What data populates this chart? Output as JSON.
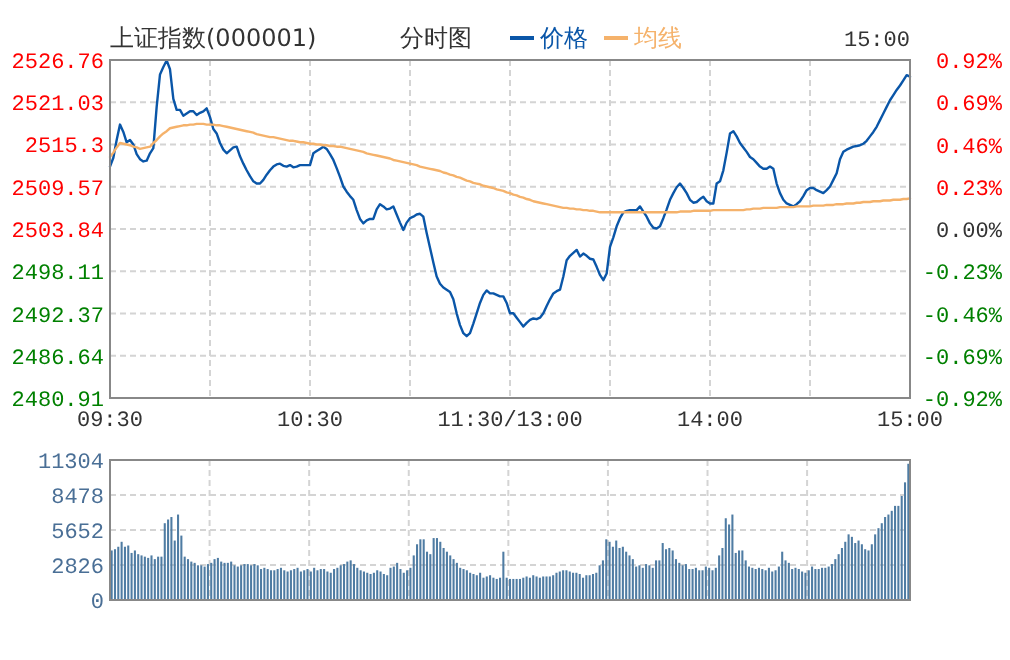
{
  "chart_data": [
    {
      "type": "line",
      "title": "上证指数(000001)",
      "subtitle": "分时图",
      "annotations": [
        "15:00"
      ],
      "legend": "top",
      "grid": true,
      "marker": "none",
      "line_style": "solid",
      "categories": [
        "09:30",
        null,
        null,
        null,
        null,
        null,
        null,
        null,
        null,
        null,
        null,
        null,
        null,
        null,
        null,
        null,
        null,
        null,
        null,
        null,
        null,
        null,
        null,
        null,
        null,
        null,
        null,
        null,
        null,
        null,
        null,
        null,
        null,
        null,
        null,
        null,
        null,
        null,
        null,
        null,
        null,
        null,
        null,
        null,
        null,
        null,
        null,
        null,
        null,
        null,
        null,
        null,
        null,
        null,
        null,
        null,
        null,
        null,
        null,
        null,
        "10:30",
        null,
        null,
        null,
        null,
        null,
        null,
        null,
        null,
        null,
        null,
        null,
        null,
        null,
        null,
        null,
        null,
        null,
        null,
        null,
        null,
        null,
        null,
        null,
        null,
        null,
        null,
        null,
        null,
        null,
        null,
        null,
        null,
        null,
        null,
        null,
        null,
        null,
        null,
        null,
        null,
        null,
        null,
        null,
        null,
        null,
        null,
        null,
        null,
        null,
        null,
        null,
        null,
        null,
        null,
        null,
        null,
        null,
        null,
        null,
        "11:30/13:00",
        null,
        null,
        null,
        null,
        null,
        null,
        null,
        null,
        null,
        null,
        null,
        null,
        null,
        null,
        null,
        null,
        null,
        null,
        null,
        null,
        null,
        null,
        null,
        null,
        null,
        null,
        null,
        null,
        null,
        null,
        null,
        null,
        null,
        null,
        null,
        null,
        null,
        null,
        null,
        null,
        null,
        null,
        null,
        null,
        null,
        null,
        null,
        null,
        null,
        null,
        null,
        null,
        null,
        null,
        null,
        null,
        null,
        null,
        null,
        "14:00",
        null,
        null,
        null,
        null,
        null,
        null,
        null,
        null,
        null,
        null,
        null,
        null,
        null,
        null,
        null,
        null,
        null,
        null,
        null,
        null,
        null,
        null,
        null,
        null,
        null,
        null,
        null,
        null,
        null,
        null,
        null,
        null,
        null,
        null,
        null,
        null,
        null,
        null,
        null,
        null,
        null,
        null,
        null,
        null,
        null,
        null,
        null,
        null,
        null,
        null,
        null,
        null,
        null,
        null,
        null,
        null,
        null,
        null,
        null,
        "15:00"
      ],
      "ylim": [
        2480.91,
        2526.76
      ],
      "yticks": [
        2480.91,
        2486.64,
        2492.37,
        2498.11,
        2503.84,
        2509.57,
        2515.3,
        2521.03,
        2526.76
      ],
      "y2lim": [
        -0.92,
        0.92
      ],
      "y2ticks": [
        {
          "value": -0.92,
          "label": "-0.92%"
        },
        {
          "value": -0.69,
          "label": "-0.69%"
        },
        {
          "value": -0.46,
          "label": "-0.46%"
        },
        {
          "value": -0.23,
          "label": "-0.23%"
        },
        {
          "value": 0,
          "label": "0.00%"
        },
        {
          "value": 0.23,
          "label": "0.23%"
        },
        {
          "value": 0.46,
          "label": "0.46%"
        },
        {
          "value": 0.69,
          "label": "0.69%"
        },
        {
          "value": 0.92,
          "label": "0.92%"
        }
      ],
      "series": [
        {
          "name": "价格",
          "color": "#0a56a8",
          "values": [
            2512.3,
            2513.5,
            2515.9,
            2518.0,
            2517.0,
            2515.6,
            2515.9,
            2515.3,
            2514.0,
            2513.3,
            2513.0,
            2513.1,
            2514.1,
            2514.8,
            2520.4,
            2524.8,
            2525.8,
            2526.7,
            2525.5,
            2521.5,
            2520.0,
            2520.0,
            2519.2,
            2519.5,
            2519.8,
            2519.8,
            2519.3,
            2519.6,
            2519.8,
            2520.2,
            2519.0,
            2517.4,
            2516.8,
            2515.5,
            2514.6,
            2514.1,
            2514.5,
            2514.9,
            2515.0,
            2513.7,
            2512.7,
            2511.8,
            2511.0,
            2510.3,
            2510.0,
            2510.0,
            2510.5,
            2511.2,
            2511.8,
            2512.3,
            2512.6,
            2512.7,
            2512.4,
            2512.3,
            2512.5,
            2512.2,
            2512.3,
            2512.5,
            2512.5,
            2512.5,
            2512.5,
            2514.1,
            2514.4,
            2514.7,
            2515.0,
            2514.7,
            2514.0,
            2513.2,
            2512.1,
            2510.9,
            2509.6,
            2508.9,
            2508.3,
            2507.8,
            2506.4,
            2505.2,
            2504.6,
            2505.0,
            2505.2,
            2505.2,
            2506.5,
            2507.2,
            2506.9,
            2506.5,
            2506.6,
            2506.9,
            2505.8,
            2504.7,
            2503.7,
            2504.7,
            2505.3,
            2505.5,
            2505.8,
            2505.9,
            2505.5,
            2503.3,
            2501.3,
            2499.3,
            2497.4,
            2496.4,
            2495.9,
            2495.6,
            2495.3,
            2494.3,
            2492.4,
            2490.8,
            2489.7,
            2489.3,
            2489.7,
            2491.0,
            2492.4,
            2493.8,
            2494.9,
            2495.5,
            2495.1,
            2495.1,
            2494.9,
            2494.7,
            2494.7,
            2493.8,
            2492.4,
            2492.4,
            2491.8,
            2491.2,
            2490.6,
            2491.1,
            2491.5,
            2491.7,
            2491.6,
            2491.8,
            2492.4,
            2493.4,
            2494.3,
            2495.1,
            2495.4,
            2495.6,
            2497.4,
            2499.6,
            2500.2,
            2500.6,
            2501.0,
            2500.1,
            2500.5,
            2500.2,
            2499.8,
            2499.7,
            2498.7,
            2497.6,
            2496.9,
            2497.8,
            2501.4,
            2502.7,
            2504.2,
            2505.3,
            2506.1,
            2506.3,
            2506.4,
            2506.4,
            2506.4,
            2506.9,
            2506.2,
            2505.5,
            2504.6,
            2504.0,
            2503.9,
            2504.2,
            2505.3,
            2506.5,
            2507.8,
            2508.7,
            2509.5,
            2510.0,
            2509.4,
            2508.7,
            2507.8,
            2507.4,
            2507.5,
            2507.9,
            2508.2,
            2507.6,
            2507.3,
            2507.3,
            2510.0,
            2510.3,
            2511.8,
            2514.2,
            2516.8,
            2517.1,
            2516.4,
            2515.5,
            2514.9,
            2514.3,
            2513.6,
            2513.3,
            2512.8,
            2512.3,
            2512.0,
            2512.0,
            2512.3,
            2512.0,
            2510.0,
            2508.7,
            2507.8,
            2507.3,
            2507.1,
            2506.9,
            2507.2,
            2507.6,
            2508.3,
            2509.1,
            2509.4,
            2509.4,
            2509.1,
            2508.9,
            2508.7,
            2509.1,
            2509.6,
            2510.5,
            2511.4,
            2513.3,
            2514.3,
            2514.6,
            2514.8,
            2515.0,
            2515.1,
            2515.2,
            2515.4,
            2515.8,
            2516.4,
            2517.0,
            2517.7,
            2518.6,
            2519.5,
            2520.4,
            2521.3,
            2522.0,
            2522.7,
            2523.3,
            2524.0,
            2524.7,
            2524.5
          ]
        },
        {
          "name": "均线",
          "color": "#f5b26b",
          "values": [
            2513.6,
            2514.2,
            2514.9,
            2515.5,
            2515.4,
            2515.3,
            2515.2,
            2515.0,
            2514.9,
            2514.7,
            2514.8,
            2514.9,
            2515.0,
            2515.5,
            2515.9,
            2516.4,
            2516.8,
            2517.1,
            2517.5,
            2517.6,
            2517.7,
            2517.8,
            2517.9,
            2517.9,
            2518.0,
            2518.0,
            2518.1,
            2518.1,
            2518.1,
            2518.0,
            2518.0,
            2518.0,
            2517.9,
            2517.9,
            2517.8,
            2517.7,
            2517.6,
            2517.5,
            2517.4,
            2517.3,
            2517.2,
            2517.1,
            2517.0,
            2516.9,
            2516.7,
            2516.6,
            2516.5,
            2516.4,
            2516.3,
            2516.3,
            2516.2,
            2516.1,
            2516.0,
            2515.9,
            2515.8,
            2515.8,
            2515.7,
            2515.6,
            2515.6,
            2515.5,
            2515.4,
            2515.4,
            2515.3,
            2515.3,
            2515.2,
            2515.2,
            2515.1,
            2515.1,
            2515.0,
            2515.0,
            2514.9,
            2514.8,
            2514.7,
            2514.6,
            2514.5,
            2514.4,
            2514.3,
            2514.1,
            2514.0,
            2513.9,
            2513.8,
            2513.7,
            2513.6,
            2513.5,
            2513.4,
            2513.2,
            2513.1,
            2513.0,
            2512.9,
            2512.8,
            2512.7,
            2512.6,
            2512.5,
            2512.3,
            2512.2,
            2512.1,
            2512.0,
            2511.9,
            2511.8,
            2511.7,
            2511.5,
            2511.4,
            2511.2,
            2511.1,
            2510.9,
            2510.8,
            2510.6,
            2510.4,
            2510.3,
            2510.1,
            2510.0,
            2509.9,
            2509.7,
            2509.6,
            2509.5,
            2509.4,
            2509.2,
            2509.1,
            2509.0,
            2508.8,
            2508.7,
            2508.5,
            2508.4,
            2508.2,
            2508.1,
            2507.9,
            2507.8,
            2507.6,
            2507.5,
            2507.4,
            2507.3,
            2507.2,
            2507.1,
            2507.0,
            2506.9,
            2506.8,
            2506.7,
            2506.7,
            2506.6,
            2506.6,
            2506.5,
            2506.5,
            2506.4,
            2506.4,
            2506.3,
            2506.3,
            2506.2,
            2506.1,
            2506.1,
            2506.1,
            2506.1,
            2506.1,
            2506.1,
            2506.1,
            2506.1,
            2506.1,
            2506.1,
            2506.1,
            2506.1,
            2506.1,
            2506.1,
            2506.1,
            2506.1,
            2506.1,
            2506.1,
            2506.1,
            2506.1,
            2506.1,
            2506.1,
            2506.1,
            2506.1,
            2506.2,
            2506.2,
            2506.2,
            2506.2,
            2506.3,
            2506.3,
            2506.3,
            2506.3,
            2506.3,
            2506.3,
            2506.4,
            2506.4,
            2506.4,
            2506.4,
            2506.4,
            2506.4,
            2506.4,
            2506.4,
            2506.4,
            2506.4,
            2506.5,
            2506.5,
            2506.6,
            2506.6,
            2506.6,
            2506.7,
            2506.7,
            2506.7,
            2506.7,
            2506.7,
            2506.8,
            2506.8,
            2506.8,
            2506.8,
            2506.8,
            2506.9,
            2506.9,
            2506.9,
            2506.9,
            2506.9,
            2507.0,
            2507.0,
            2507.0,
            2507.0,
            2507.1,
            2507.1,
            2507.1,
            2507.2,
            2507.2,
            2507.2,
            2507.3,
            2507.3,
            2507.3,
            2507.4,
            2507.4,
            2507.5,
            2507.5,
            2507.5,
            2507.6,
            2507.6,
            2507.6,
            2507.7,
            2507.7,
            2507.7,
            2507.8,
            2507.8,
            2507.8,
            2507.9,
            2507.9,
            2508.0
          ]
        }
      ]
    },
    {
      "type": "bar",
      "grid": true,
      "tick_labels": "y",
      "categories": [
        null,
        null,
        null,
        null,
        null,
        null,
        null,
        null,
        null,
        null,
        null,
        null,
        null,
        null,
        null,
        null,
        null,
        null,
        null,
        null,
        null,
        null,
        null,
        null,
        null,
        null,
        null,
        null,
        null,
        null,
        null,
        null,
        null,
        null,
        null,
        null,
        null,
        null,
        null,
        null,
        null,
        null,
        null,
        null,
        null,
        null,
        null,
        null,
        null,
        null,
        null,
        null,
        null,
        null,
        null,
        null,
        null,
        null,
        null,
        null,
        null,
        null,
        null,
        null,
        null,
        null,
        null,
        null,
        null,
        null,
        null,
        null,
        null,
        null,
        null,
        null,
        null,
        null,
        null,
        null,
        null,
        null,
        null,
        null,
        null,
        null,
        null,
        null,
        null,
        null,
        null,
        null,
        null,
        null,
        null,
        null,
        null,
        null,
        null,
        null,
        null,
        null,
        null,
        null,
        null,
        null,
        null,
        null,
        null,
        null,
        null,
        null,
        null,
        null,
        null,
        null,
        null,
        null,
        null,
        null,
        null,
        null,
        null,
        null,
        null,
        null,
        null,
        null,
        null,
        null,
        null,
        null,
        null,
        null,
        null,
        null,
        null,
        null,
        null,
        null,
        null,
        null,
        null,
        null,
        null,
        null,
        null,
        null,
        null,
        null,
        null,
        null,
        null,
        null,
        null,
        null,
        null,
        null,
        null,
        null,
        null,
        null,
        null,
        null,
        null,
        null,
        null,
        null,
        null,
        null,
        null,
        null,
        null,
        null,
        null,
        null,
        null,
        null,
        null,
        null,
        null,
        null,
        null,
        null,
        null,
        null,
        null,
        null,
        null,
        null,
        null,
        null,
        null,
        null,
        null,
        null,
        null,
        null,
        null,
        null,
        null,
        null,
        null,
        null,
        null,
        null,
        null,
        null,
        null,
        null,
        null,
        null,
        null,
        null,
        null,
        null,
        null,
        null,
        null,
        null,
        null,
        null,
        null,
        null,
        null,
        null,
        null,
        null,
        null,
        null,
        null,
        null,
        null,
        null,
        null,
        null,
        null,
        null,
        null,
        null,
        null
      ],
      "ylim": [
        0,
        11304
      ],
      "yticks": [
        0,
        2826,
        5652,
        8478,
        11304
      ],
      "series": [
        {
          "color": "#4f7ca3",
          "values": [
            4000,
            4100,
            4300,
            4700,
            4300,
            4400,
            3800,
            4000,
            3700,
            3600,
            3500,
            3400,
            3600,
            3300,
            3500,
            3500,
            6200,
            6500,
            6700,
            4800,
            6900,
            5200,
            3500,
            3300,
            3100,
            3000,
            2800,
            2800,
            2700,
            2900,
            3000,
            3300,
            3400,
            3100,
            3000,
            3000,
            3100,
            2800,
            2700,
            2800,
            2900,
            2900,
            2800,
            2900,
            2800,
            2500,
            2600,
            2500,
            2400,
            2400,
            2500,
            2600,
            2400,
            2300,
            2400,
            2500,
            2600,
            2300,
            2400,
            2500,
            2300,
            2600,
            2400,
            2500,
            2500,
            2300,
            2200,
            2500,
            2600,
            2800,
            2900,
            3100,
            3200,
            2900,
            2600,
            2400,
            2300,
            2200,
            2100,
            2200,
            2400,
            2300,
            2100,
            2000,
            2600,
            2700,
            3000,
            2500,
            2200,
            2400,
            2600,
            3600,
            4500,
            4900,
            4900,
            3900,
            3700,
            5000,
            5000,
            4700,
            4200,
            3900,
            3600,
            3300,
            3000,
            2600,
            2500,
            2400,
            2200,
            2100,
            2000,
            2200,
            1800,
            1900,
            2000,
            1800,
            1700,
            1800,
            3900,
            1800,
            1700,
            1700,
            1700,
            1700,
            1800,
            1900,
            1800,
            2000,
            1900,
            1800,
            1900,
            1900,
            1900,
            2000,
            2200,
            2300,
            2400,
            2400,
            2300,
            2200,
            2200,
            2100,
            1800,
            2000,
            2000,
            2100,
            2200,
            2800,
            3200,
            4900,
            4700,
            4300,
            4800,
            4200,
            4300,
            3900,
            3600,
            3300,
            2700,
            2800,
            2600,
            2900,
            2800,
            2600,
            3200,
            3200,
            4600,
            4100,
            4200,
            4000,
            3300,
            3000,
            2800,
            2900,
            2500,
            2500,
            2600,
            2400,
            2400,
            2700,
            2600,
            2400,
            2600,
            3600,
            4200,
            6600,
            6100,
            6900,
            3800,
            4000,
            4000,
            3200,
            2700,
            2600,
            2500,
            2600,
            2500,
            2400,
            2600,
            2300,
            2400,
            2700,
            3900,
            3200,
            3000,
            2500,
            2600,
            2500,
            2300,
            2200,
            2400,
            2700,
            2500,
            2500,
            2600,
            2600,
            2700,
            2900,
            3300,
            3700,
            4200,
            4700,
            5300,
            5100,
            4600,
            4800,
            4500,
            4100,
            4000,
            4500,
            5300,
            5800,
            6200,
            6700,
            6900,
            7200,
            7600,
            7600,
            8400,
            9500,
            11000
          ]
        }
      ]
    }
  ]
}
